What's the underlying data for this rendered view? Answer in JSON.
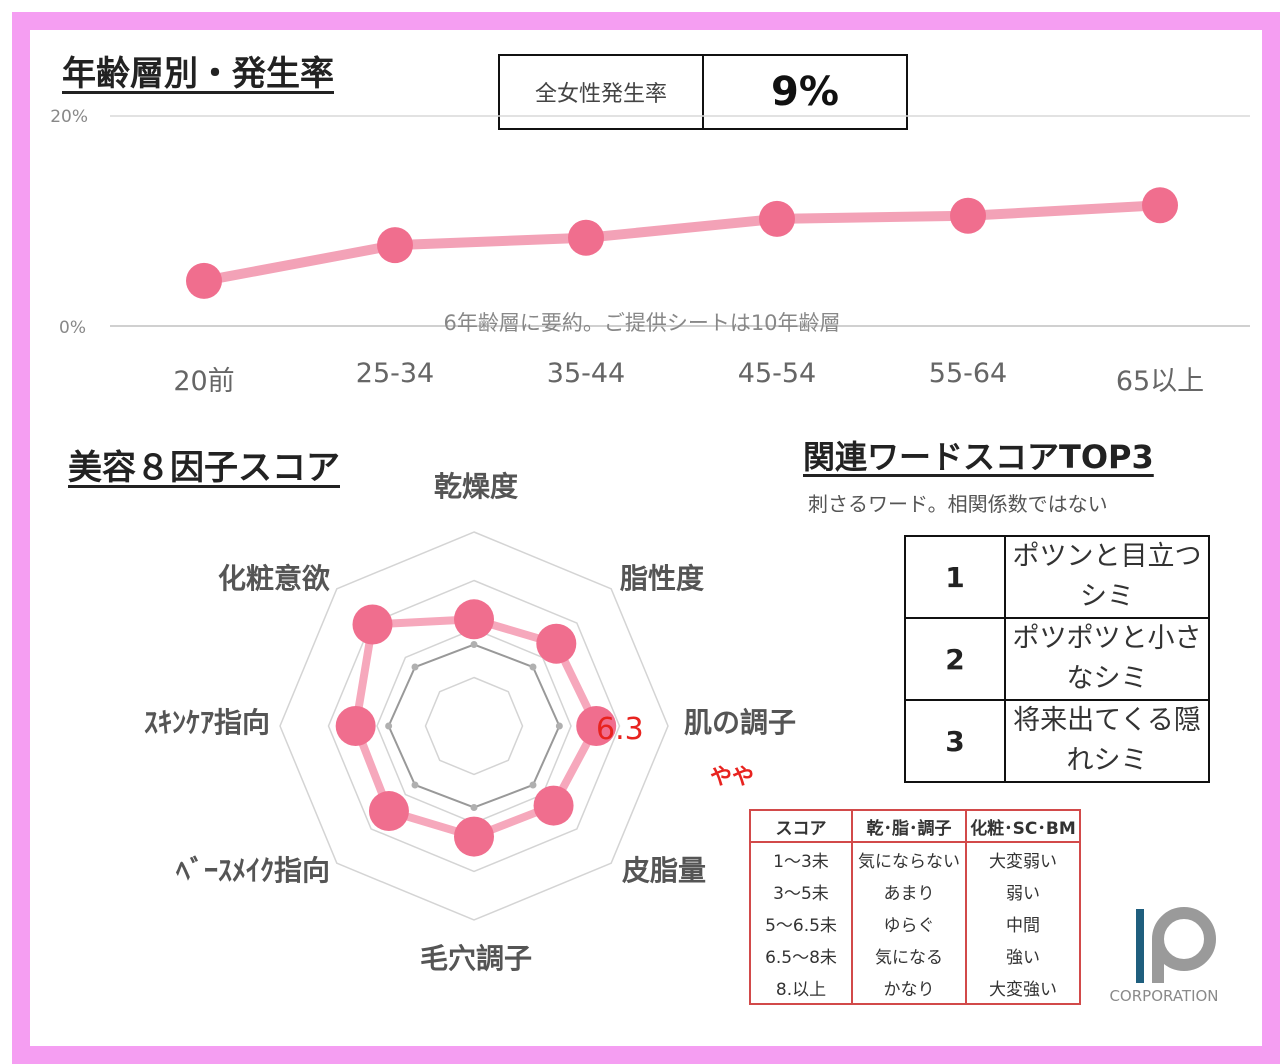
{
  "sections": {
    "age_title": "年齢層別・発生率",
    "factor_title": "美容８因子スコア",
    "words_title": "関連ワードスコアTOP3",
    "words_note": "刺さるワード。相関係数ではない"
  },
  "overall": {
    "label": "全女性発生率",
    "value": "9%"
  },
  "chart_data": [
    {
      "type": "line",
      "title": "年齢層別・発生率",
      "categories": [
        "20前",
        "25-34",
        "35-44",
        "45-54",
        "55-64",
        "65以上"
      ],
      "values": [
        4.3,
        7.7,
        8.4,
        10.2,
        10.5,
        11.5
      ],
      "ylim": [
        0,
        20
      ],
      "yticks": [
        "0%",
        "20%"
      ],
      "annotation": "6年齢層に要約。ご提供シートは10年齢層",
      "grid": true,
      "color": "#f3a2b7",
      "marker_color": "#f06e8e"
    },
    {
      "type": "radar",
      "axes": [
        "乾燥度",
        "脂性度",
        "肌の調子",
        "皮脂量",
        "毛穴調子",
        "ﾍﾞｰｽﾒｲｸ指向",
        "ｽｷﾝｹｱ指向",
        "化粧意欲"
      ],
      "series": [
        {
          "values": [
            5.5,
            6.0,
            6.3,
            5.8,
            5.7,
            6.2,
            6.1,
            7.4
          ],
          "color": "#f06e8e"
        },
        {
          "values": [
            4.2,
            4.3,
            4.4,
            4.3,
            4.2,
            4.3,
            4.4,
            4.3
          ],
          "color": "#999999"
        }
      ],
      "rmax": 10,
      "highlight": {
        "axis": "肌の調子",
        "label": "6.3",
        "note": "やや",
        "color": "#e8231f"
      }
    }
  ],
  "top3": [
    {
      "rank": "1",
      "word": "ポツンと目立つシミ"
    },
    {
      "rank": "2",
      "word": "ポツポツと小さなシミ"
    },
    {
      "rank": "3",
      "word": "将来出てくる隠れシミ"
    }
  ],
  "score_legend": {
    "headers": [
      "スコア",
      "乾･脂･調子",
      "化粧･SC･BM"
    ],
    "rows": [
      [
        "1～3未",
        "気にならない",
        "大変弱い"
      ],
      [
        "3～5未",
        "あまり",
        "弱い"
      ],
      [
        "5～6.5未",
        "ゆらぐ",
        "中間"
      ],
      [
        "6.5～8未",
        "気になる",
        "強い"
      ],
      [
        "8.以上",
        "かなり",
        "大変強い"
      ]
    ]
  },
  "logo": {
    "text": "CORPORATION",
    "color": "#1f5f7e"
  }
}
